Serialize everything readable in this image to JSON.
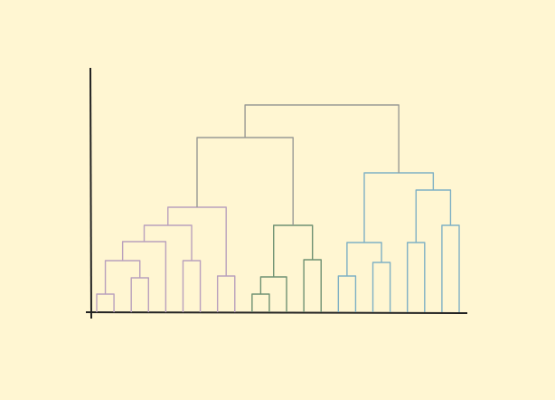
{
  "chart_data": {
    "type": "dendrogram",
    "ylim": [
      0,
      270
    ],
    "merges": [
      {
        "children": [
          0,
          1
        ],
        "height": 20,
        "color": "#b9a0bd"
      },
      {
        "children": [
          2,
          3
        ],
        "height": 38,
        "color": "#b9a0bd"
      },
      {
        "children": [
          22,
          23
        ],
        "height": 57,
        "color": "#b9a0bd"
      },
      {
        "children": [
          24,
          4
        ],
        "height": 78,
        "color": "#b9a0bd"
      },
      {
        "children": [
          5,
          6
        ],
        "height": 57,
        "color": "#b9a0bd"
      },
      {
        "children": [
          25,
          26
        ],
        "height": 96,
        "color": "#b9a0bd"
      },
      {
        "children": [
          7,
          8
        ],
        "height": 40,
        "color": "#b9a0bd"
      },
      {
        "children": [
          27,
          28
        ],
        "height": 116,
        "color": "#b9a0bd"
      },
      {
        "children": [
          9,
          10
        ],
        "height": 20,
        "color": "#6f9172"
      },
      {
        "children": [
          30,
          11
        ],
        "height": 39,
        "color": "#6f9172"
      },
      {
        "children": [
          12,
          13
        ],
        "height": 58,
        "color": "#6f9172"
      },
      {
        "children": [
          31,
          32
        ],
        "height": 96,
        "color": "#6f9172"
      },
      {
        "children": [
          29,
          33
        ],
        "height": 193,
        "color": "#999a94"
      },
      {
        "children": [
          14,
          15
        ],
        "height": 40,
        "color": "#7fb0c4"
      },
      {
        "children": [
          16,
          17
        ],
        "height": 55,
        "color": "#7fb0c4"
      },
      {
        "children": [
          35,
          36
        ],
        "height": 77,
        "color": "#7fb0c4"
      },
      {
        "children": [
          18,
          19
        ],
        "height": 77,
        "color": "#7fb0c4"
      },
      {
        "children": [
          20,
          21
        ],
        "height": 96,
        "color": "#7fb0c4"
      },
      {
        "children": [
          38,
          39
        ],
        "height": 135,
        "color": "#7fb0c4"
      },
      {
        "children": [
          37,
          40
        ],
        "height": 154,
        "color": "#7fb0c4"
      },
      {
        "children": [
          34,
          41
        ],
        "height": 229,
        "color": "#999a94"
      }
    ]
  }
}
